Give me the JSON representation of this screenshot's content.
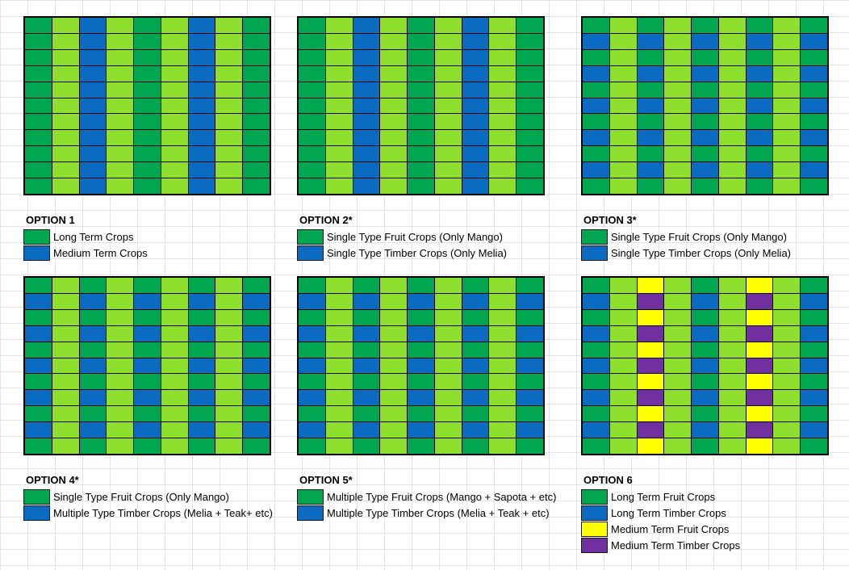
{
  "colors": {
    "G": "#00a650",
    "L": "#8fe02e",
    "B": "#0a6bc0",
    "Y": "#ffff00",
    "P": "#7030a0"
  },
  "options": [
    {
      "title": "OPTION 1",
      "column_pattern": [
        "G",
        "L",
        "B",
        "L",
        "G",
        "L",
        "B",
        "L",
        "G"
      ],
      "legend": [
        {
          "color": "G",
          "label": "Long Term Crops"
        },
        {
          "color": "B",
          "label": "Medium Term Crops"
        }
      ]
    },
    {
      "title": "OPTION 2*",
      "column_pattern": [
        "G",
        "L",
        "B",
        "L",
        "G",
        "L",
        "B",
        "L",
        "G"
      ],
      "legend": [
        {
          "color": "G",
          "label": "Single Type Fruit Crops (Only Mango)"
        },
        {
          "color": "B",
          "label": "Single Type Timber Crops (Only Melia)"
        }
      ]
    },
    {
      "title": "OPTION 3*",
      "column_pattern": [
        "GB",
        "L",
        "GB",
        "L",
        "GB",
        "L",
        "GB",
        "L",
        "GB"
      ],
      "legend": [
        {
          "color": "G",
          "label": "Single Type Fruit Crops (Only Mango)"
        },
        {
          "color": "B",
          "label": "Single Type Timber Crops (Only Melia)"
        }
      ]
    },
    {
      "title": "OPTION 4*",
      "column_pattern": [
        "GB",
        "L",
        "GB",
        "L",
        "GB",
        "L",
        "GB",
        "L",
        "GB"
      ],
      "legend": [
        {
          "color": "G",
          "label": "Single Type Fruit Crops (Only Mango)"
        },
        {
          "color": "B",
          "label": "Multiple Type Timber Crops (Melia + Teak+ etc)"
        }
      ]
    },
    {
      "title": "OPTION 5*",
      "column_pattern": [
        "GB",
        "L",
        "GB",
        "L",
        "GB",
        "L",
        "GB",
        "L",
        "GB"
      ],
      "legend": [
        {
          "color": "G",
          "label": "Multiple Type Fruit Crops (Mango + Sapota + etc)"
        },
        {
          "color": "B",
          "label": "Multiple Type Timber Crops (Melia + Teak + etc)"
        }
      ]
    },
    {
      "title": "OPTION 6",
      "column_pattern": [
        "GB",
        "L",
        "YP",
        "L",
        "GB",
        "L",
        "YP",
        "L",
        "GB"
      ],
      "legend": [
        {
          "color": "G",
          "label": "Long Term Fruit Crops"
        },
        {
          "color": "B",
          "label": "Long Term Timber Crops"
        },
        {
          "color": "Y",
          "label": "Medium Term Fruit Crops"
        },
        {
          "color": "P",
          "label": "Medium Term Timber Crops"
        }
      ]
    }
  ]
}
